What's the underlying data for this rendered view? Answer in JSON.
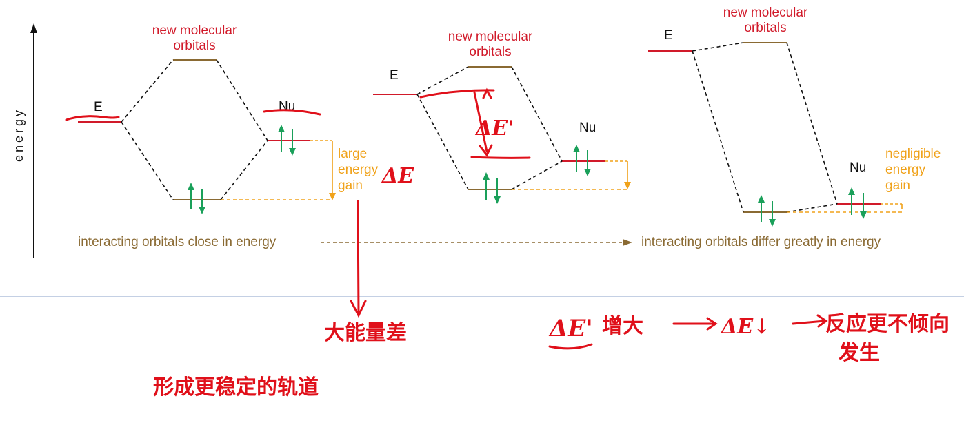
{
  "axis": {
    "label": "energy"
  },
  "diagram1": {
    "title": "new molecular orbitals",
    "title_line1": "new molecular",
    "title_line2": "orbitals",
    "electrophile": "E",
    "nucleophile": "Nu",
    "gain_line1": "large",
    "gain_line2": "energy",
    "gain_line3": "gain"
  },
  "diagram2": {
    "title_line1": "new molecular",
    "title_line2": "orbitals",
    "electrophile": "E",
    "nucleophile": "Nu"
  },
  "diagram3": {
    "title_line1": "new molecular",
    "title_line2": "orbitals",
    "electrophile": "E",
    "nucleophile": "Nu",
    "gain_line1": "negligible",
    "gain_line2": "energy",
    "gain_line3": "gain"
  },
  "trend": {
    "left": "interacting orbitals close in energy",
    "right": "interacting orbitals differ greatly in energy"
  },
  "handwriting": {
    "delta_e": "ΔE",
    "delta_e_prime": "ΔE'",
    "note_large_gap": "大能量差",
    "note_stable_orbital": "形成更稳定的轨道",
    "note_increase": "增大",
    "note_delta_e_down": "ΔE↓",
    "note_reaction_line1": "反应更不倾向",
    "note_reaction_line2": "发生"
  },
  "colors": {
    "red": "#d11a2a",
    "brown": "#8a6a33",
    "orange": "#f0a21a",
    "green": "#1aa05a",
    "ink": "#e0101a",
    "divider": "#8aa0c8"
  }
}
